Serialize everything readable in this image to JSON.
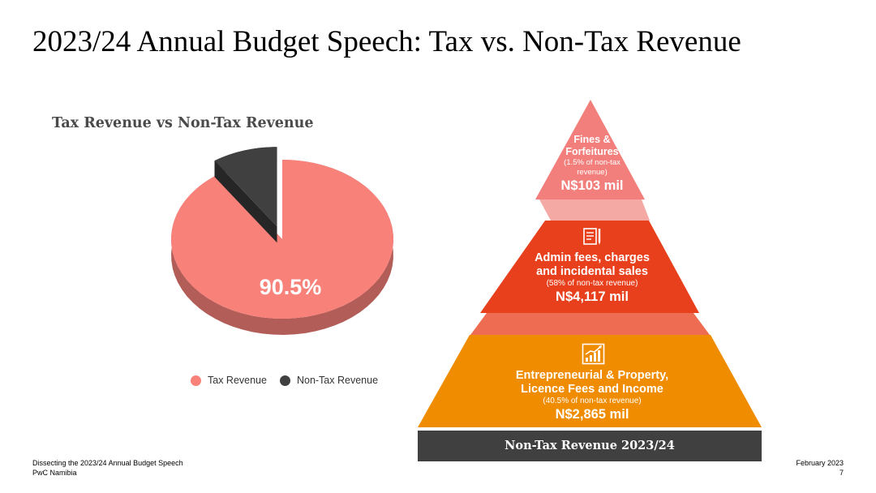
{
  "slide_title": "2023/24 Annual Budget Speech: Tax vs. Non-Tax Revenue",
  "chart_data": [
    {
      "type": "pie",
      "title": "Tax Revenue vs Non-Tax Revenue",
      "categories": [
        "Tax Revenue",
        "Non-Tax Revenue"
      ],
      "values": [
        90.5,
        9.5
      ],
      "data_labels": [
        "90.5%",
        ""
      ],
      "colors": [
        "#f8817a",
        "#404040"
      ],
      "legend_position": "bottom"
    },
    {
      "type": "pyramid",
      "title": "Non-Tax Revenue 2023/24",
      "tiers": [
        {
          "name": "Fines & Forfeitures",
          "share_label": "(1.5% of non-tax revenue)",
          "value_label": "N$103 mil",
          "value": 103,
          "color": "#f27f7b"
        },
        {
          "name": "Admin fees, charges and incidental sales",
          "share_label": "(58% of non-tax revenue)",
          "value_label": "N$4,117 mil",
          "value": 4117,
          "color": "#e8401d"
        },
        {
          "name": "Entrepreneurial & Property, Licence Fees and Income",
          "share_label": "(40.5% of non-tax revenue)",
          "value_label": "N$2,865 mil",
          "value": 2865,
          "color": "#f08c00"
        }
      ]
    }
  ],
  "pyramid": {
    "tier1": {
      "line1": "Fines &",
      "line2": "Forfeitures",
      "sub1": "(1.5% of non-tax",
      "sub2": "revenue)",
      "value": "N$103 mil"
    },
    "tier2": {
      "line1": "Admin fees, charges",
      "line2": "and incidental sales",
      "sub": "(58% of non-tax revenue)",
      "value": "N$4,117 mil",
      "icon": "document-pen-icon"
    },
    "tier3": {
      "line1": "Entrepreneurial & Property,",
      "line2": "Licence Fees and Income",
      "sub": "(40.5% of non-tax revenue)",
      "value": "N$2,865 mil",
      "icon": "growth-chart-icon"
    },
    "base_label": "Non-Tax Revenue 2023/24",
    "colors": {
      "base": "#404040",
      "connector1": "#f4a9a4",
      "connector2": "#ee6d52"
    }
  },
  "footer": {
    "left_line1": "Dissecting the 2023/24 Annual Budget Speech",
    "left_line2": "PwC Namibia",
    "right_line1": "February 2023",
    "right_line2": "7"
  }
}
